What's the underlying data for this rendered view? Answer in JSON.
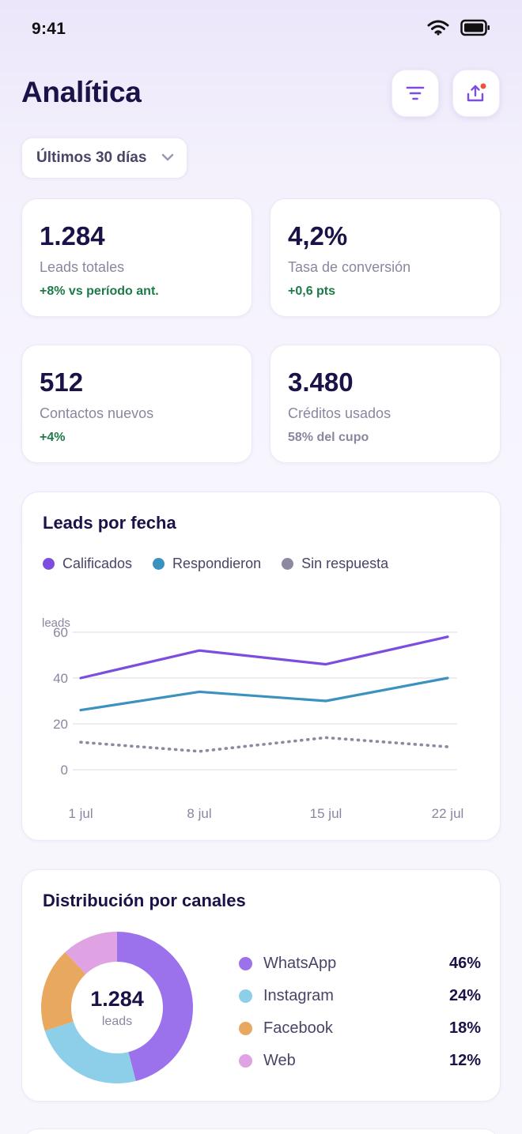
{
  "status": {
    "time": "9:41"
  },
  "header": {
    "title": "Analítica",
    "filter_icon": "filter-icon",
    "share_icon": "share-icon"
  },
  "date_range": {
    "selected": "Últimos 30 días"
  },
  "stats": [
    {
      "value": "1.284",
      "label": "Leads totales",
      "delta": "+8% vs período ant."
    },
    {
      "value": "4,2%",
      "label": "Tasa de conversión",
      "delta": "+0,6 pts"
    },
    {
      "value": "512",
      "label": "Contactos nuevos",
      "delta": "+4%"
    },
    {
      "value": "3.480",
      "label": "Créditos usados",
      "delta": "58% del cupo"
    }
  ],
  "leads_chart": {
    "title": "Leads por fecha",
    "legend": [
      "Calificados",
      "Respondieron",
      "Sin respuesta"
    ],
    "colors": {
      "calificados": "#7c4ddf",
      "respondieron": "#3b92be",
      "sin_respuesta": "#8c89a0"
    }
  },
  "chart_data": {
    "type": "line",
    "title": "Leads por fecha",
    "ylabel": "leads",
    "ylim": [
      0,
      60
    ],
    "yticks": [
      "60",
      "40",
      "20",
      "0"
    ],
    "categories": [
      "1 jul",
      "8 jul",
      "15 jul",
      "22 jul"
    ],
    "series": [
      {
        "name": "Calificados",
        "values": [
          40,
          52,
          46,
          58
        ]
      },
      {
        "name": "Respondieron",
        "values": [
          26,
          34,
          30,
          40
        ]
      },
      {
        "name": "Sin respuesta",
        "values": [
          12,
          8,
          14,
          10
        ]
      }
    ],
    "grid": true,
    "legend_position": "top-left"
  },
  "channels": {
    "title": "Distribución por canales",
    "total": "1.284",
    "total_label": "leads",
    "items": [
      {
        "name": "WhatsApp",
        "pct": "46%",
        "value": 46,
        "color": "#9b72ec"
      },
      {
        "name": "Instagram",
        "pct": "24%",
        "value": 24,
        "color": "#8dcfe9"
      },
      {
        "name": "Facebook",
        "pct": "18%",
        "value": 18,
        "color": "#e9a860"
      },
      {
        "name": "Web",
        "pct": "12%",
        "value": 12,
        "color": "#dfa3e3"
      }
    ]
  }
}
